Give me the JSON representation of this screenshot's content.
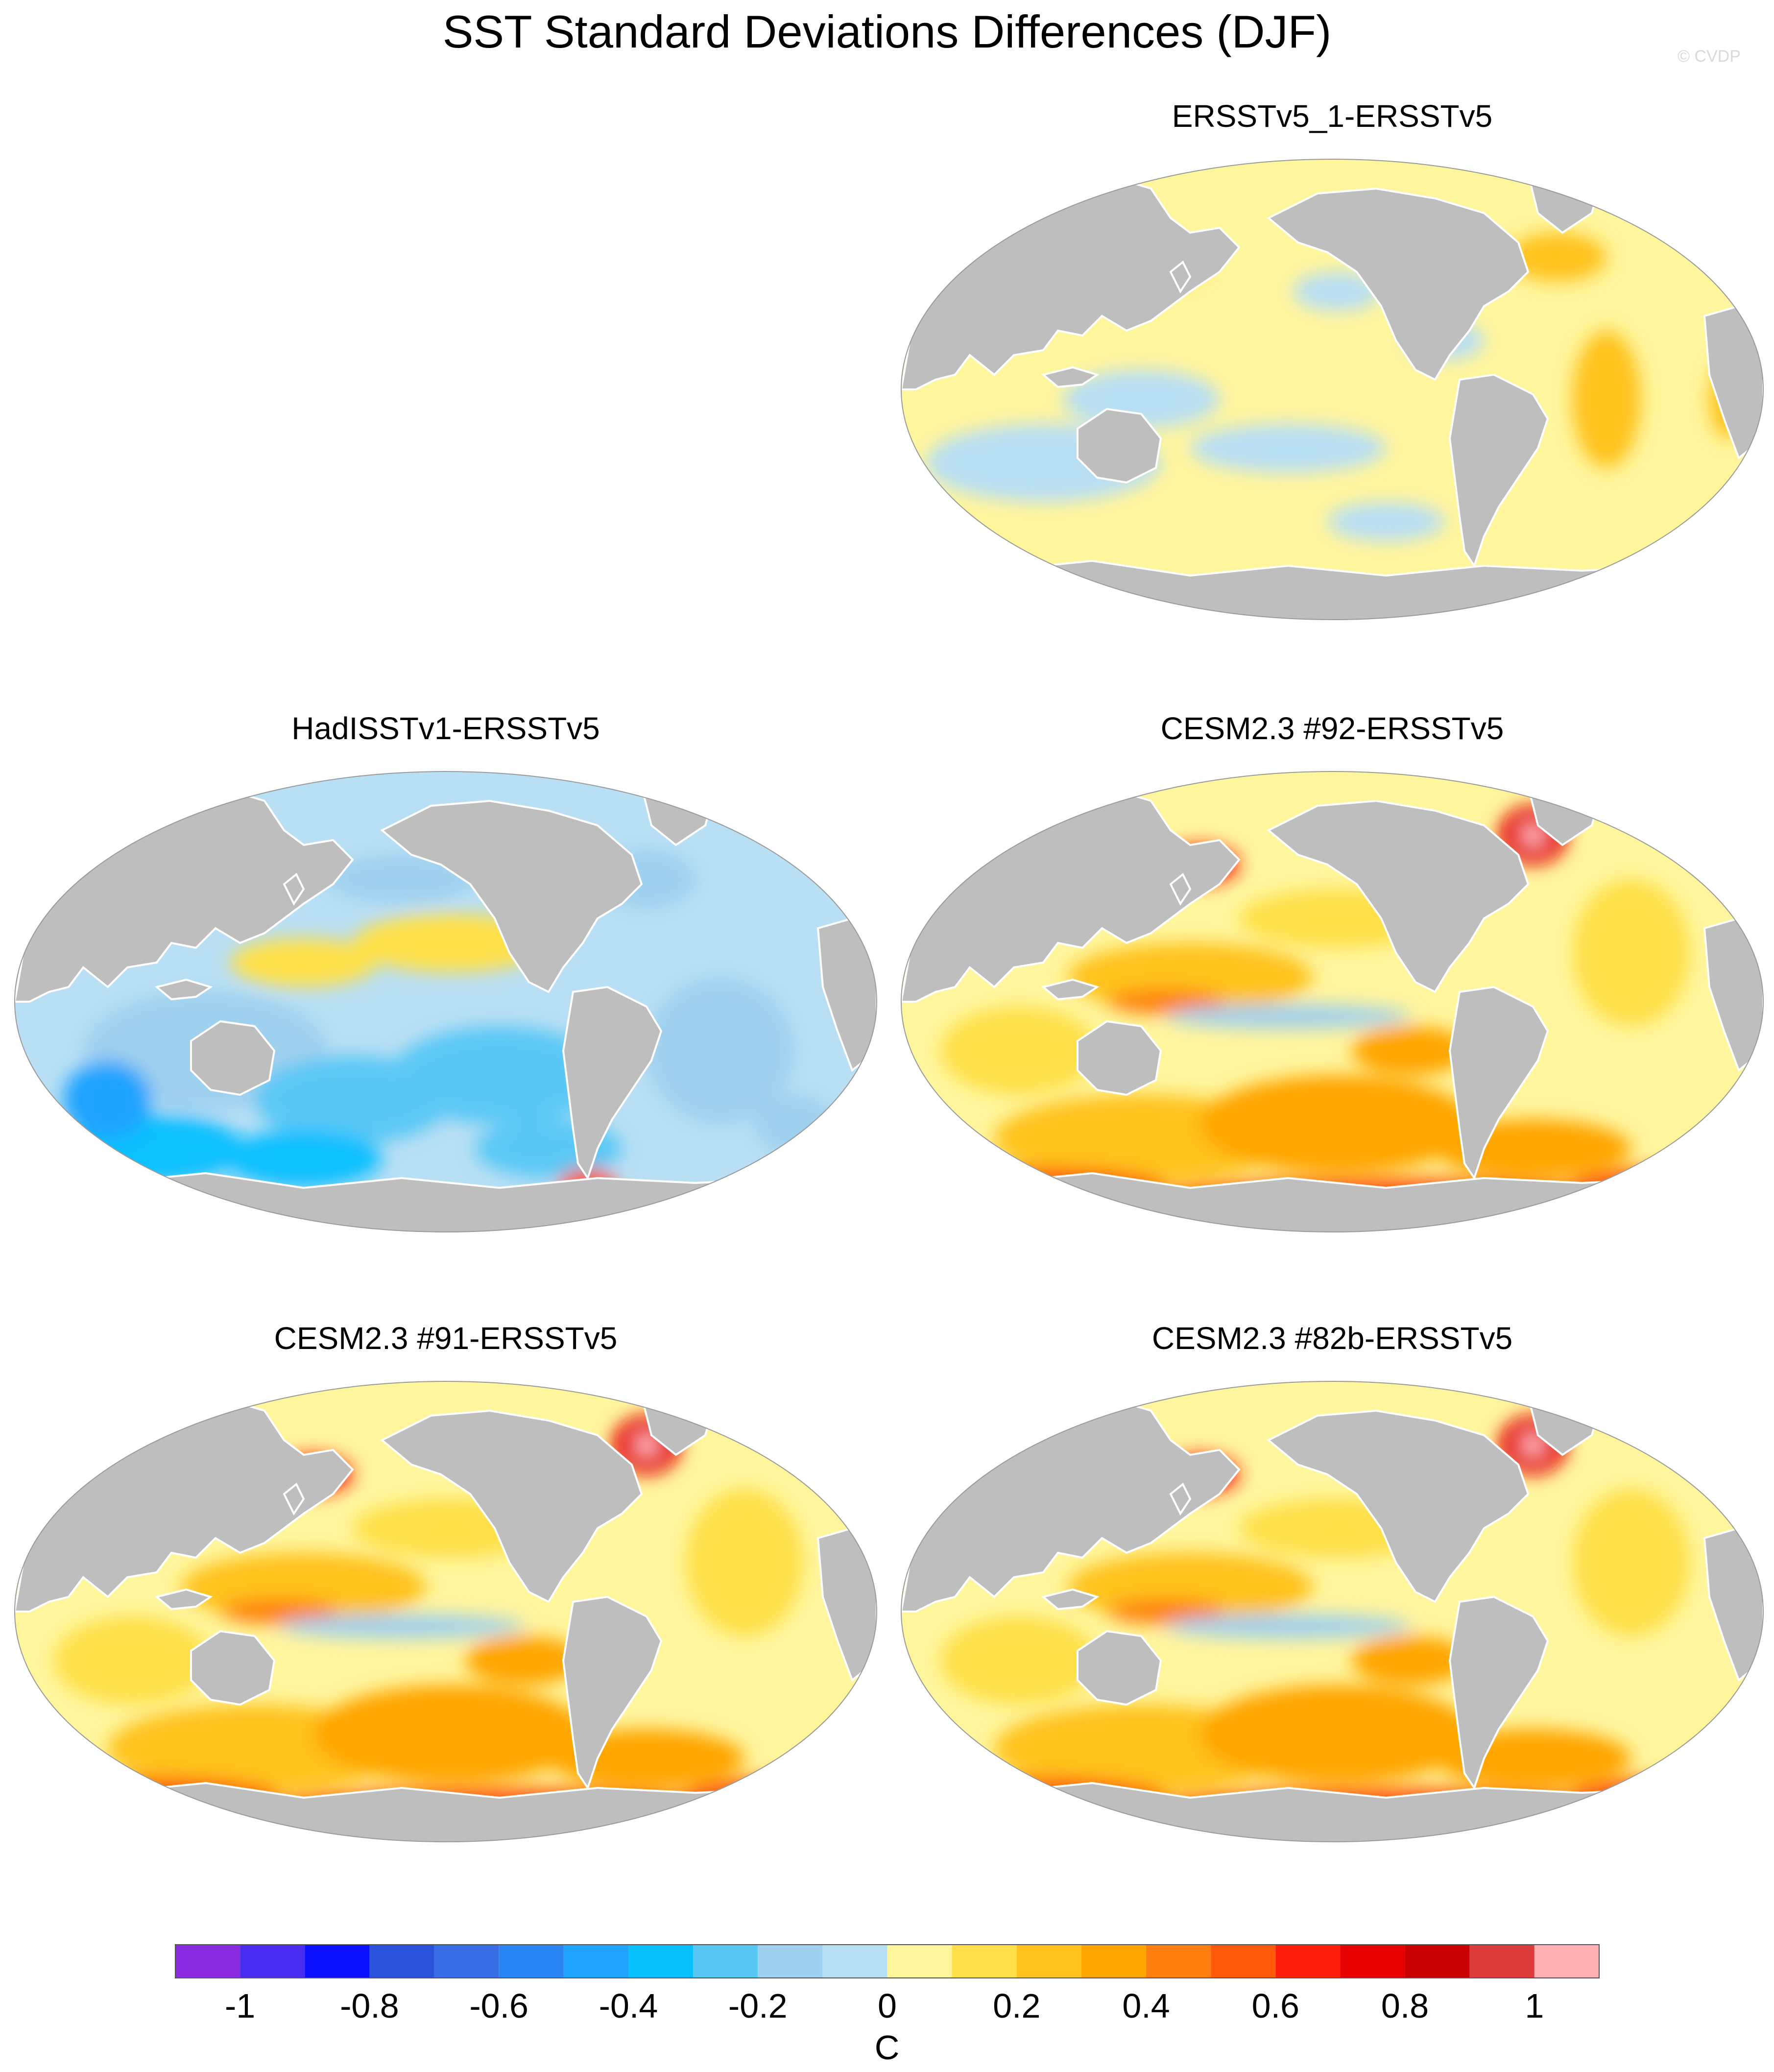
{
  "title": "SST Standard Deviations Differences (DJF)",
  "credit": "© CVDP",
  "colors": {
    "land": "#bebebe",
    "ocean_near_zero_pos": "#fff59d",
    "ocean_near_zero_neg": "#b3dcf2",
    "coast": "#ffffff"
  },
  "panels": [
    {
      "title": "ERSSTv5_1-ERSSTv5",
      "style": "mild"
    },
    {
      "title": "HadISSTv1-ERSSTv5",
      "style": "cool"
    },
    {
      "title": "CESM2.3 #92-ERSSTv5",
      "style": "warm"
    },
    {
      "title": "CESM2.3 #91-ERSSTv5",
      "style": "warm"
    },
    {
      "title": "CESM2.3 #82b-ERSSTv5",
      "style": "warm"
    }
  ],
  "colorbar": {
    "unit": "C",
    "colors": [
      "#8a2be2",
      "#4a2cf0",
      "#0a10ff",
      "#2a52dc",
      "#3a6ee6",
      "#2a86f5",
      "#1ea3ff",
      "#08c0ff",
      "#5ac8f5",
      "#9fd0ee",
      "#b8dff4",
      "#fff59d",
      "#ffe04a",
      "#ffc21e",
      "#ffa500",
      "#ff7f0e",
      "#ff5a0a",
      "#ff1e0a",
      "#e60000",
      "#c80000",
      "#dc3c3c",
      "#ffb0b4"
    ],
    "tick_labels": [
      "-1",
      "-0.8",
      "-0.6",
      "-0.4",
      "-0.2",
      "0",
      "0.2",
      "0.4",
      "0.6",
      "0.8",
      "1"
    ],
    "tick_values": [
      -1,
      -0.8,
      -0.6,
      -0.4,
      -0.2,
      0,
      0.2,
      0.4,
      0.6,
      0.8,
      1
    ],
    "range": [
      -1.1,
      1.1
    ]
  }
}
